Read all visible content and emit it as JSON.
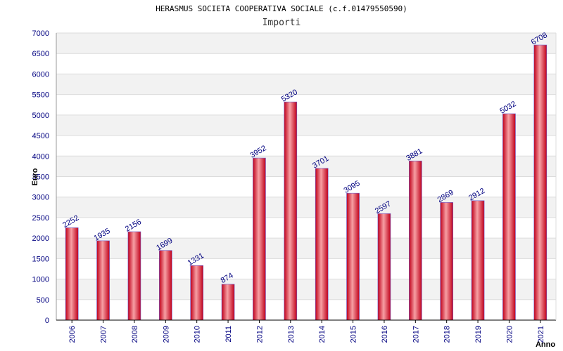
{
  "title": "HERASMUS SOCIETA COOPERATIVA SOCIALE (c.f.01479550590)",
  "subtitle": "Importi",
  "chart_data": {
    "type": "bar",
    "title": "HERASMUS SOCIETA COOPERATIVA SOCIALE (c.f.01479550590)",
    "subtitle": "Importi",
    "xlabel": "Anno",
    "ylabel": "Euro",
    "categories": [
      "2006",
      "2007",
      "2008",
      "2009",
      "2010",
      "2011",
      "2012",
      "2013",
      "2014",
      "2015",
      "2016",
      "2017",
      "2018",
      "2019",
      "2020",
      "2021"
    ],
    "values": [
      2252,
      1935,
      2156,
      1699,
      1331,
      874,
      3952,
      5320,
      3701,
      3095,
      2597,
      3881,
      2869,
      2912,
      5032,
      6708
    ],
    "ylim": [
      0,
      7000
    ],
    "yticks": [
      0,
      500,
      1000,
      1500,
      2000,
      2500,
      3000,
      3500,
      4000,
      4500,
      5000,
      5500,
      6000,
      6500,
      7000
    ],
    "grid": true,
    "colors": {
      "bar": "#e8141c",
      "bar_highlight": "#f7a0a4",
      "label": "#000080",
      "band": "#f2f2f2"
    }
  }
}
